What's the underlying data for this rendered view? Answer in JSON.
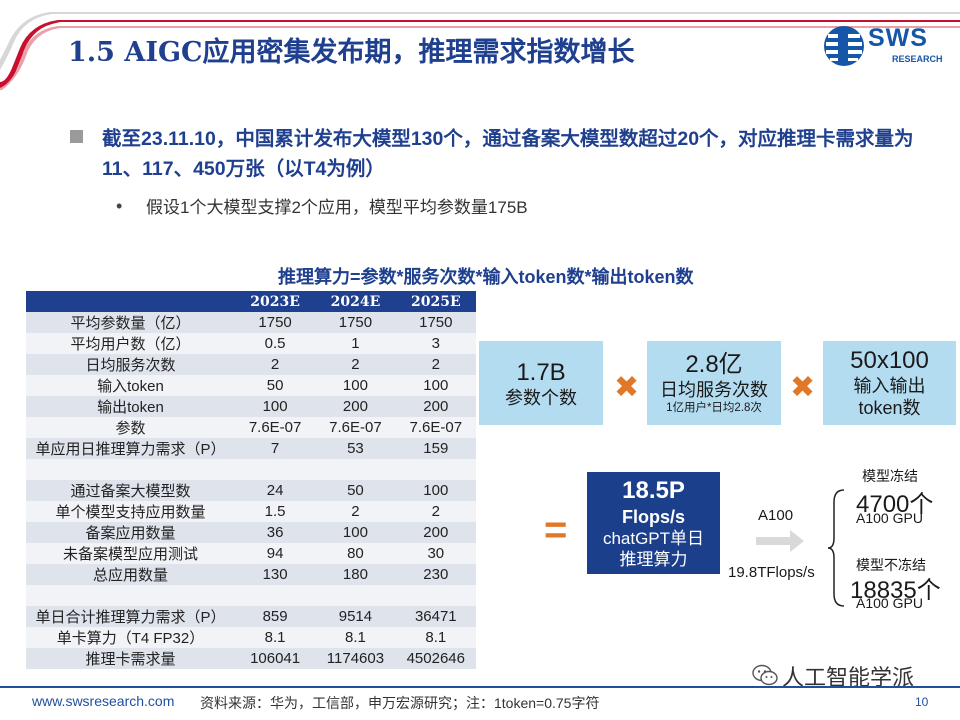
{
  "header": {
    "title": "1.5 AIGC应用密集发布期，推理需求指数增长",
    "logo_text": "SWS",
    "logo_sub": "RESEARCH"
  },
  "bullets": {
    "main": "截至23.11.10，中国累计发布大模型130个，通过备案大模型数超过20个，对应推理卡需求量为11、117、450万张（以T4为例）",
    "sub": "假设1个大模型支撑2个应用，模型平均参数量175B"
  },
  "formula": "推理算力=参数*服务次数*输入token数*输出token数",
  "table": {
    "headers": [
      "",
      "2023E",
      "2024E",
      "2025E"
    ],
    "rows": [
      [
        "平均参数量（亿）",
        "1750",
        "1750",
        "1750"
      ],
      [
        "平均用户数（亿）",
        "0.5",
        "1",
        "3"
      ],
      [
        "日均服务次数",
        "2",
        "2",
        "2"
      ],
      [
        "输入token",
        "50",
        "100",
        "100"
      ],
      [
        "输出token",
        "100",
        "200",
        "200"
      ],
      [
        "参数",
        "7.6E-07",
        "7.6E-07",
        "7.6E-07"
      ],
      [
        "单应用日推理算力需求（P）",
        "7",
        "53",
        "159"
      ],
      [
        "",
        "",
        "",
        ""
      ],
      [
        "通过备案大模型数",
        "24",
        "50",
        "100"
      ],
      [
        "单个模型支持应用数量",
        "1.5",
        "2",
        "2"
      ],
      [
        "备案应用数量",
        "36",
        "100",
        "200"
      ],
      [
        "未备案模型应用测试",
        "94",
        "80",
        "30"
      ],
      [
        "总应用数量",
        "130",
        "180",
        "230"
      ],
      [
        "",
        "",
        "",
        ""
      ],
      [
        "单日合计推理算力需求（P）",
        "859",
        "9514",
        "36471"
      ],
      [
        "单卡算力（T4  FP32）",
        "8.1",
        "8.1",
        "8.1"
      ],
      [
        "推理卡需求量",
        "106041",
        "1174603",
        "4502646"
      ]
    ]
  },
  "boxes": {
    "params": {
      "big": "1.7B",
      "label": "参数个数"
    },
    "services": {
      "big": "2.8亿",
      "label": "日均服务次数",
      "note": "1亿用户*日均2.8次"
    },
    "tokens": {
      "big": "50x100",
      "label1": "输入输出",
      "label2": "token数"
    }
  },
  "operators": {
    "times": "✖",
    "equals": "="
  },
  "result": {
    "value": "18.5P",
    "unit": "Flops/s",
    "line1": "chatGPT单日",
    "line2": "推理算力"
  },
  "gpu": {
    "name": "A100",
    "throughput": "19.8TFlops/s",
    "frozen": {
      "title": "模型冻结",
      "count": "4700个",
      "unit": "A100 GPU"
    },
    "unfrozen": {
      "title": "模型不冻结",
      "count": "18835个",
      "unit": "A100 GPU"
    }
  },
  "footer": {
    "url": "www.swsresearch.com",
    "source": "资料来源：华为，工信部，申万宏源研究；注：1token=0.75字符",
    "page": "10",
    "watermark": "人工智能学派"
  },
  "colors": {
    "brand": "#1f3f8f",
    "accent": "#e0782a",
    "box": "#b4dcf0",
    "result": "#1c3f8c"
  }
}
